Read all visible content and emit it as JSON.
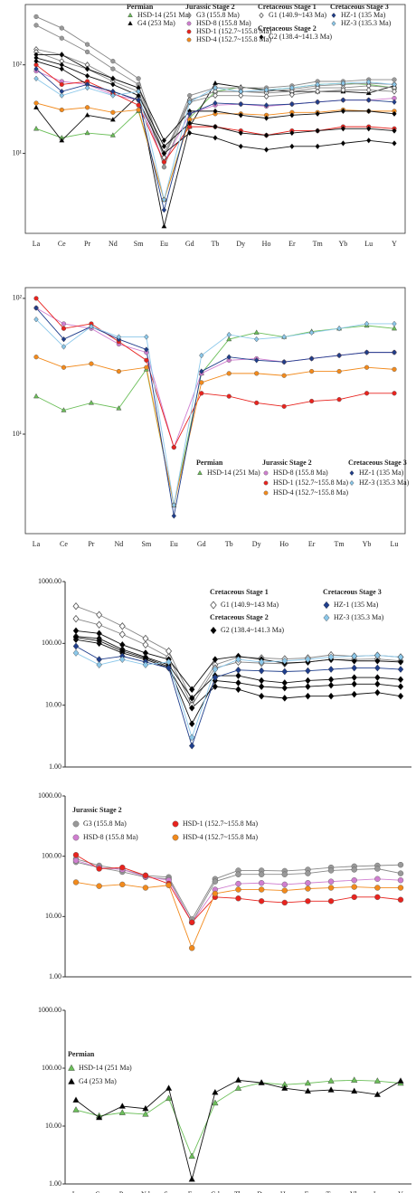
{
  "chart_data": [
    {
      "type": "line",
      "log_y": true,
      "categories": [
        "La",
        "Ce",
        "Pr",
        "Nd",
        "Sm",
        "Eu",
        "Gd",
        "Tb",
        "Dy",
        "Ho",
        "Er",
        "Tm",
        "Yb",
        "Lu",
        "Y"
      ],
      "ylim": [
        1.25,
        480
      ],
      "yticks": [
        {
          "value": 10,
          "label": "10¹"
        },
        {
          "value": 100,
          "label": "10²"
        }
      ],
      "series": [
        {
          "name": "HSD-14 (251 Ma)",
          "group": "Permian",
          "color": "#6cbf5a",
          "marker": "triangle",
          "samples": [
            [
              19,
              15,
              17,
              16,
              30,
              3,
              25,
              50,
              56,
              52,
              55,
              60,
              62,
              60,
              55
            ]
          ]
        },
        {
          "name": "G4 (253 Ma)",
          "group": "Permian",
          "color": "#000000",
          "marker": "triangle",
          "samples": [
            [
              33,
              14,
              27,
              24,
              45,
              1.5,
              20,
              62,
              56,
              52,
              50,
              50,
              50,
              48,
              58
            ]
          ]
        },
        {
          "name": "G3 (155.8 Ma)",
          "group": "Jurassic Stage 2",
          "color": "#999999",
          "marker": "circle",
          "samples": [
            [
              350,
              260,
              170,
              110,
              70,
              9,
              45,
              55,
              55,
              55,
              58,
              65,
              65,
              68,
              68
            ],
            [
              280,
              200,
              140,
              90,
              60,
              7,
              40,
              50,
              50,
              50,
              53,
              58,
              60,
              62,
              60
            ]
          ]
        },
        {
          "name": "HSD-8 (155.8 Ma)",
          "group": "Jurassic Stage 2",
          "color": "#d07fd0",
          "marker": "circle",
          "samples": [
            [
              85,
              65,
              60,
              46,
              40,
              8,
              28,
              35,
              36,
              34,
              36,
              38,
              40,
              40,
              42
            ]
          ]
        },
        {
          "name": "HSD-1 (152.7~155.8 Ma)",
          "group": "Jurassic Stage 2",
          "color": "#e8231e",
          "marker": "circle",
          "samples": [
            [
              100,
              60,
              65,
              48,
              35,
              8,
              20,
              20,
              18,
              16,
              18,
              18,
              20,
              20,
              19
            ]
          ]
        },
        {
          "name": "HSD-4 (152.7~155.8 Ma)",
          "group": "Jurassic Stage 2",
          "color": "#f28a1c",
          "marker": "circle",
          "samples": [
            [
              37,
              31,
              33,
              29,
              31,
              3,
              24,
              28,
              28,
              27,
              29,
              29,
              31,
              30,
              30
            ]
          ]
        },
        {
          "name": "G1 (140.9~143 Ma)",
          "group": "Cretaceous Stage 1",
          "color": "#999999",
          "marker": "open-diamond",
          "samples": [
            [
              150,
              130,
              100,
              70,
              55,
              10,
              40,
              50,
              50,
              48,
              50,
              55,
              55,
              58,
              55
            ],
            [
              140,
              110,
              90,
              65,
              50,
              9,
              38,
              45,
              45,
              44,
              46,
              50,
              52,
              52,
              50
            ]
          ]
        },
        {
          "name": "G2 (138.4~141.3 Ma)",
          "group": "Cretaceous Stage 2",
          "color": "#000000",
          "marker": "diamond",
          "samples": [
            [
              130,
              130,
              90,
              70,
              55,
              14,
              30,
              30,
              27,
              25,
              27,
              28,
              30,
              30,
              28
            ],
            [
              120,
              100,
              75,
              60,
              45,
              12,
              22,
              20,
              17,
              16,
              17,
              18,
              19,
              19,
              18
            ],
            [
              110,
              90,
              60,
              50,
              40,
              10,
              17,
              15,
              12,
              11,
              12,
              12,
              13,
              14,
              13
            ]
          ]
        },
        {
          "name": "HZ-1 (135 Ma)",
          "group": "Cretaceous Stage 3",
          "color": "#1f3e8c",
          "marker": "diamond",
          "samples": [
            [
              90,
              50,
              60,
              50,
              40,
              2.3,
              28,
              37,
              36,
              35,
              36,
              38,
              40,
              40,
              38
            ]
          ]
        },
        {
          "name": "HZ-3 (135.3 Ma)",
          "group": "Cretaceous Stage 3",
          "color": "#8cc8ea",
          "marker": "diamond",
          "samples": [
            [
              70,
              45,
              55,
              45,
              50,
              3,
              38,
              55,
              50,
              52,
              55,
              60,
              62,
              64,
              60
            ]
          ]
        }
      ]
    },
    {
      "type": "line",
      "log_y": true,
      "categories": [
        "La",
        "Ce",
        "Pr",
        "Nd",
        "Sm",
        "Eu",
        "Gd",
        "Tb",
        "Dy",
        "Ho",
        "Er",
        "Tm",
        "Yb",
        "Lu"
      ],
      "ylim": [
        1.85,
        120
      ],
      "yticks": [
        {
          "value": 10,
          "label": "10¹"
        },
        {
          "value": 100,
          "label": "10²"
        }
      ],
      "series": [
        {
          "name": "HSD-14 (251 Ma)",
          "group": "Permian",
          "color": "#6cbf5a",
          "marker": "triangle",
          "samples": [
            [
              19,
              15,
              17,
              15.5,
              30,
              3,
              28,
              50,
              56,
              52,
              57,
              60,
              63,
              60
            ]
          ]
        },
        {
          "name": "HSD-8 (155.8 Ma)",
          "group": "Jurassic Stage 2",
          "color": "#d07fd0",
          "marker": "circle",
          "samples": [
            [
              85,
              65,
              60,
              46,
              40,
              8,
              28,
              35,
              36,
              34,
              36,
              38,
              40,
              40
            ]
          ]
        },
        {
          "name": "HSD-1 (152.7~155.8 Ma)",
          "group": "Jurassic Stage 2",
          "color": "#e8231e",
          "marker": "circle",
          "samples": [
            [
              100,
              60,
              65,
              48,
              35,
              8,
              20,
              19,
              17,
              16,
              17.5,
              18,
              20,
              20
            ]
          ]
        },
        {
          "name": "HSD-4 (152.7~155.8 Ma)",
          "group": "Jurassic Stage 2",
          "color": "#f28a1c",
          "marker": "circle",
          "samples": [
            [
              37,
              31,
              33,
              29,
              31,
              3,
              24,
              28,
              28,
              27,
              29,
              29,
              31,
              30
            ]
          ]
        },
        {
          "name": "HZ-1 (135 Ma)",
          "group": "Cretaceous Stage 3",
          "color": "#1f3e8c",
          "marker": "diamond",
          "samples": [
            [
              85,
              50,
              62,
              50,
              42,
              2.5,
              29,
              37,
              35,
              34,
              36,
              38,
              40,
              40
            ]
          ]
        },
        {
          "name": "HZ-3 (135.3 Ma)",
          "group": "Cretaceous Stage 3",
          "color": "#8cc8ea",
          "marker": "diamond",
          "samples": [
            [
              70,
              44,
              62,
              52,
              52,
              3,
              38,
              54,
              50,
              52,
              56,
              60,
              65,
              65
            ]
          ]
        }
      ]
    },
    {
      "type": "line",
      "log_y": true,
      "categories": [
        null,
        null,
        null,
        null,
        null,
        null,
        null,
        null,
        null,
        null,
        null,
        null,
        null,
        null,
        null
      ],
      "ylim": [
        1,
        1000
      ],
      "yticks": [
        {
          "value": 1,
          "label": "1.00"
        },
        {
          "value": 10,
          "label": "10.00"
        },
        {
          "value": 100,
          "label": "100.00"
        },
        {
          "value": 1000,
          "label": "1000.00"
        }
      ],
      "series": [
        {
          "name": "G1 (140.9~143 Ma)",
          "group": "Cretaceous Stage 1",
          "color": "#999999",
          "marker": "open-diamond",
          "samples": [
            [
              400,
              290,
              190,
              120,
              75,
              12,
              45,
              60,
              58,
              56,
              58,
              65,
              62,
              64,
              60
            ],
            [
              250,
              200,
              140,
              95,
              60,
              10,
              40,
              50,
              48,
              47,
              50,
              55,
              55,
              56,
              52
            ]
          ]
        },
        {
          "name": "G2 (138.4~141.3 Ma)",
          "group": "Cretaceous Stage 2",
          "color": "#000000",
          "marker": "diamond",
          "samples": [
            [
              160,
              145,
              95,
              70,
              55,
              18,
              55,
              62,
              55,
              48,
              50,
              55,
              52,
              52,
              50
            ],
            [
              130,
              120,
              80,
              60,
              45,
              13,
              30,
              30,
              25,
              23,
              25,
              26,
              28,
              28,
              26
            ],
            [
              115,
              100,
              70,
              55,
              40,
              9,
              20,
              18,
              14,
              13,
              14,
              14,
              15,
              16,
              14
            ],
            [
              125,
              110,
              75,
              58,
              42,
              5,
              25,
              23,
              20,
              19,
              20,
              21,
              22,
              22,
              20
            ]
          ]
        },
        {
          "name": "HZ-1 (135 Ma)",
          "group": "Cretaceous Stage 3",
          "color": "#1f3e8c",
          "marker": "diamond",
          "samples": [
            [
              90,
              55,
              62,
              50,
              40,
              2.2,
              28,
              37,
              36,
              35,
              36,
              38,
              40,
              40,
              38
            ]
          ]
        },
        {
          "name": "HZ-3 (135.3 Ma)",
          "group": "Cretaceous Stage 3",
          "color": "#8cc8ea",
          "marker": "diamond",
          "samples": [
            [
              70,
              45,
              55,
              45,
              50,
              3,
              38,
              55,
              50,
              52,
              55,
              60,
              62,
              64,
              60
            ]
          ]
        }
      ]
    },
    {
      "type": "line",
      "log_y": true,
      "categories": [
        null,
        null,
        null,
        null,
        null,
        null,
        null,
        null,
        null,
        null,
        null,
        null,
        null,
        null,
        null
      ],
      "ylim": [
        1,
        1000
      ],
      "yticks": [
        {
          "value": 1,
          "label": "1.00"
        },
        {
          "value": 10,
          "label": "10.00"
        },
        {
          "value": 100,
          "label": "100.00"
        },
        {
          "value": 1000,
          "label": "1000.00"
        }
      ],
      "series": [
        {
          "name": "G3 (155.8 Ma)",
          "group": "Jurassic Stage 2",
          "color": "#999999",
          "marker": "circle",
          "samples": [
            [
              90,
              70,
              60,
              48,
              45,
              9,
              42,
              58,
              58,
              57,
              60,
              65,
              68,
              70,
              72
            ],
            [
              80,
              65,
              55,
              45,
              42,
              8,
              38,
              50,
              50,
              50,
              52,
              58,
              60,
              62,
              52
            ]
          ]
        },
        {
          "name": "HSD-8 (155.8 Ma)",
          "group": "Jurassic Stage 2",
          "color": "#d07fd0",
          "marker": "circle",
          "samples": [
            [
              85,
              65,
              60,
              46,
              40,
              8,
              28,
              35,
              36,
              34,
              36,
              38,
              40,
              42,
              40
            ]
          ]
        },
        {
          "name": "HSD-1 (152.7~155.8 Ma)",
          "group": "Jurassic Stage 2",
          "color": "#e8231e",
          "marker": "circle",
          "samples": [
            [
              105,
              62,
              65,
              48,
              35,
              8,
              21,
              20,
              18,
              17,
              18,
              18,
              21,
              21,
              19
            ]
          ]
        },
        {
          "name": "HSD-4 (152.7~155.8 Ma)",
          "group": "Jurassic Stage 2",
          "color": "#f28a1c",
          "marker": "circle",
          "samples": [
            [
              37,
              32,
              34,
              30,
              33,
              3,
              24,
              28,
              28,
              27,
              29,
              30,
              31,
              30,
              30
            ]
          ]
        }
      ]
    },
    {
      "type": "line",
      "log_y": true,
      "categories": [
        "La",
        "Ce",
        "Pr",
        "Nd",
        "Sm",
        "Eu",
        "Gd",
        "Tb",
        "Dy",
        "Ho",
        "Er",
        "Tm",
        "Yb",
        "Lu",
        "Y"
      ],
      "ylim": [
        1,
        1000
      ],
      "yticks": [
        {
          "value": 1,
          "label": "1.00"
        },
        {
          "value": 10,
          "label": "10.00"
        },
        {
          "value": 100,
          "label": "100.00"
        },
        {
          "value": 1000,
          "label": "1000.00"
        }
      ],
      "series": [
        {
          "name": "HSD-14 (251 Ma)",
          "group": "Permian",
          "color": "#6cbf5a",
          "marker": "triangle",
          "samples": [
            [
              19,
              15,
              17,
              16,
              30,
              3,
              25,
              45,
              56,
              52,
              55,
              60,
              62,
              60,
              55
            ]
          ]
        },
        {
          "name": "G4 (253 Ma)",
          "group": "Permian",
          "color": "#000000",
          "marker": "triangle",
          "samples": [
            [
              28,
              14,
              22,
              20,
              45,
              1.2,
              38,
              62,
              56,
              45,
              40,
              42,
              40,
              35,
              60
            ]
          ]
        }
      ]
    }
  ]
}
